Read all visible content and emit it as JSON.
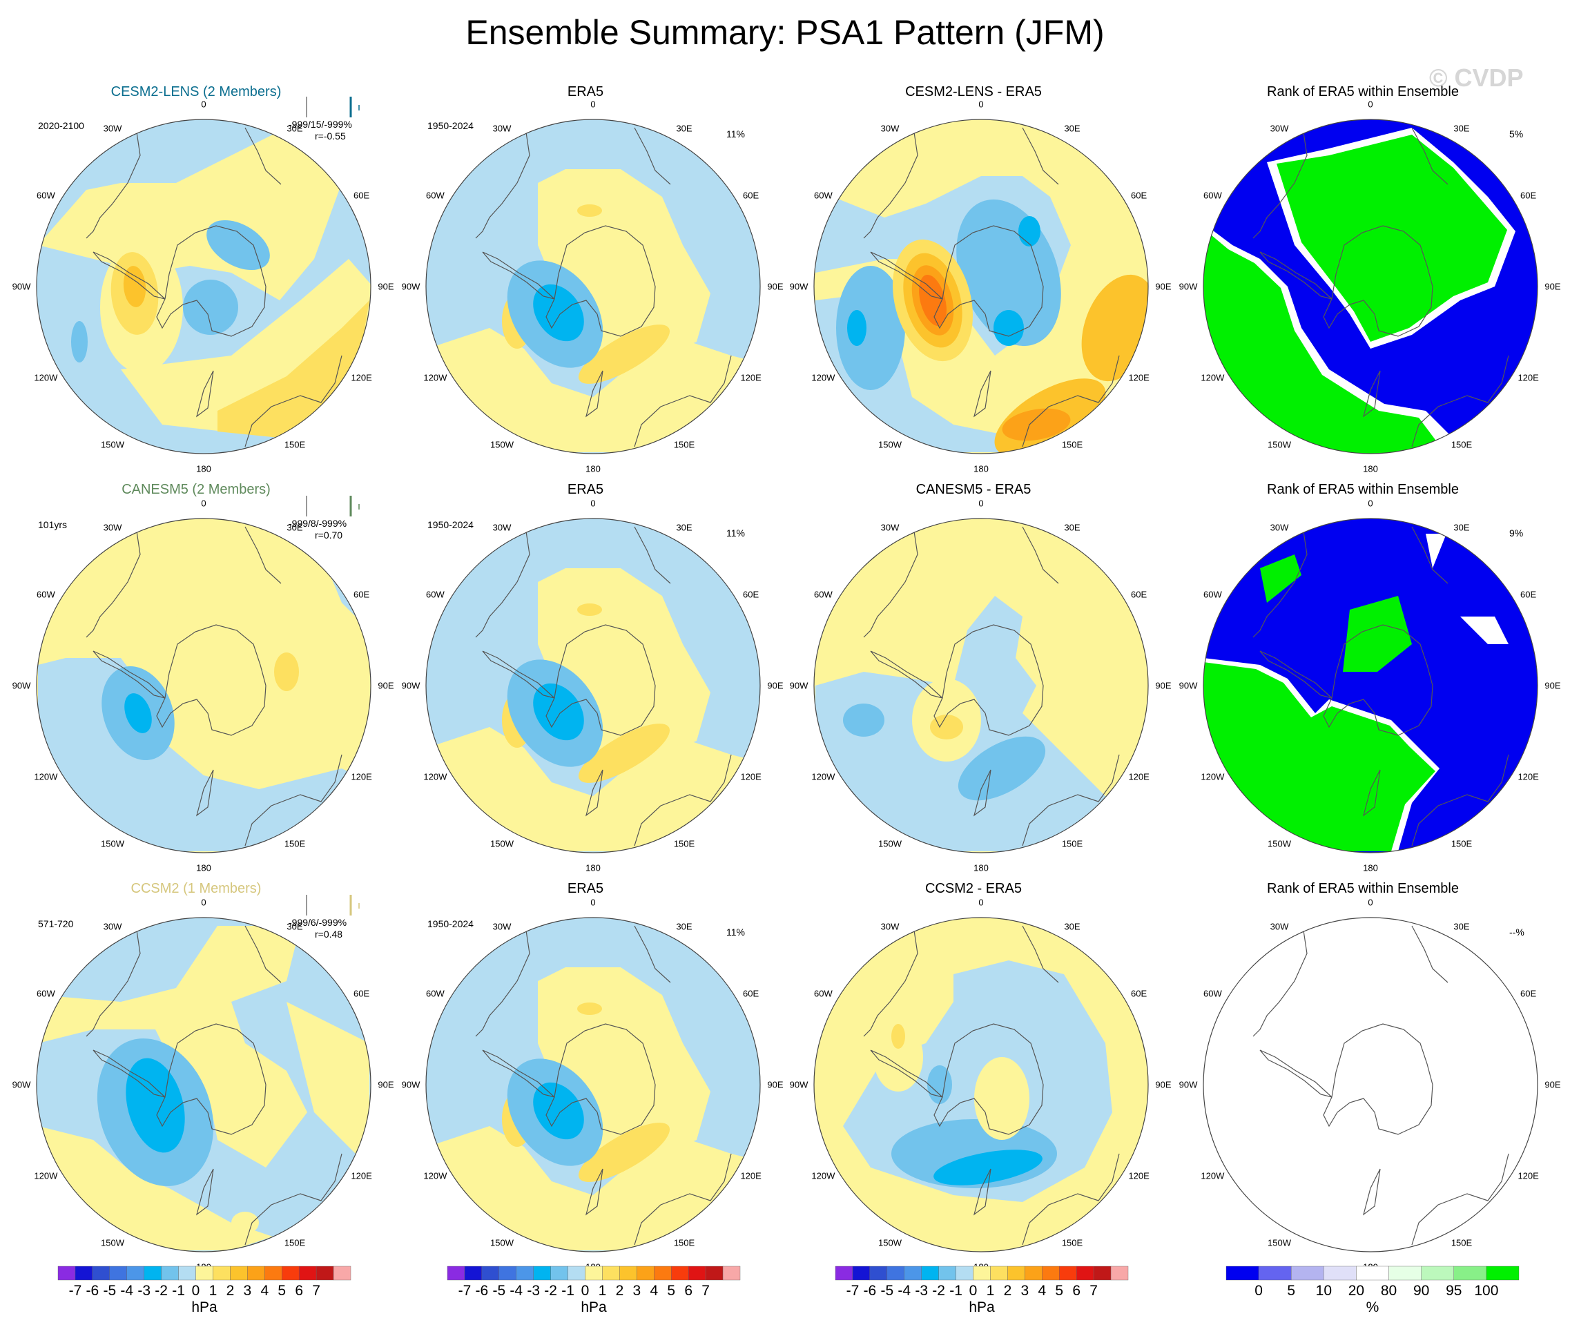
{
  "title": "Ensemble Summary: PSA1 Pattern (JFM)",
  "watermark": "© CVDP",
  "lon_labels": [
    "0",
    "30E",
    "60E",
    "90E",
    "120E",
    "150E",
    "180",
    "150W",
    "120W",
    "90W",
    "60W",
    "30W"
  ],
  "rows": [
    {
      "model": "CESM2-LENS (2 Members)",
      "model_color": "#0b6e8f",
      "model_period": "2020-2100",
      "stats_line1": "-999/15/-999%",
      "stats_line2": "r=-0.55",
      "obs_title": "ERA5",
      "obs_period": "1950-2024",
      "obs_pct": "11%",
      "diff_title": "CESM2-LENS - ERA5",
      "rank_title": "Rank of ERA5 within Ensemble",
      "rank_pct": "5%"
    },
    {
      "model": "CANESM5 (2 Members)",
      "model_color": "#5f8a5c",
      "model_period": "101yrs",
      "stats_line1": "-999/8/-999%",
      "stats_line2": "r=0.70",
      "obs_title": "ERA5",
      "obs_period": "1950-2024",
      "obs_pct": "11%",
      "diff_title": "CANESM5 - ERA5",
      "rank_title": "Rank of ERA5 within Ensemble",
      "rank_pct": "9%"
    },
    {
      "model": "CCSM2 (1 Members)",
      "model_color": "#d6c77e",
      "model_period": "571-720",
      "stats_line1": "-999/6/-999%",
      "stats_line2": "r=0.48",
      "obs_title": "ERA5",
      "obs_period": "1950-2024",
      "obs_pct": "11%",
      "diff_title": "CCSM2 - ERA5",
      "rank_title": "Rank of ERA5 within Ensemble",
      "rank_pct": "--%"
    }
  ],
  "colorbars": {
    "hpa": {
      "unit": "hPa",
      "colors": [
        "#8a2be2",
        "#1414d4",
        "#2f4fd0",
        "#3f74e0",
        "#4c96e8",
        "#00b4f0",
        "#72c3ec",
        "#b4ddf2",
        "#fdf59a",
        "#fde060",
        "#fcc32c",
        "#fca218",
        "#fc7a10",
        "#f83c0c",
        "#e01414",
        "#c01818",
        "#f8a8a8"
      ],
      "ticks": [
        "-7",
        "-6",
        "-5",
        "-4",
        "-3",
        "-2",
        "-1",
        "0",
        "1",
        "2",
        "3",
        "4",
        "5",
        "6",
        "7"
      ]
    },
    "rank": {
      "unit": "%",
      "colors": [
        "#0000f0",
        "#6464f0",
        "#b4b4f0",
        "#e0e0f8",
        "#ffffff",
        "#e6ffe6",
        "#bcf8bc",
        "#88f088",
        "#00f000"
      ],
      "ticks": [
        "0",
        "5",
        "10",
        "20",
        "80",
        "90",
        "95",
        "100"
      ]
    }
  }
}
